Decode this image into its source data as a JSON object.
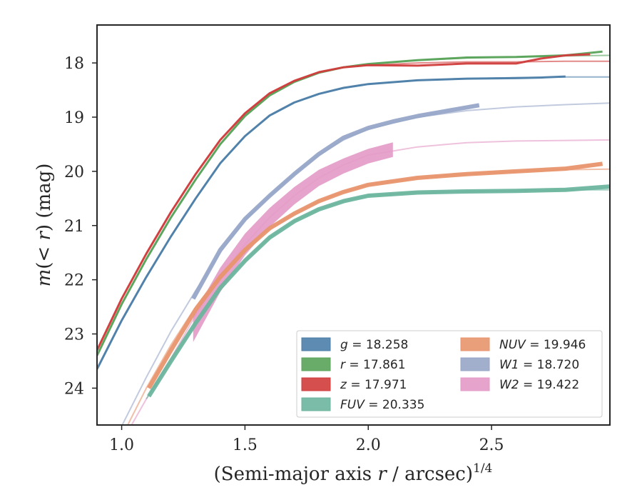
{
  "chart_data": {
    "type": "line",
    "xlabel": "(Semi-major axis r / arcsec)^{1/4}",
    "xlabel_parts": {
      "pre": "(Semi-major axis ",
      "var": "r",
      "post": " / arcsec)",
      "sup": "1/4"
    },
    "ylabel": "m(< r) (mag)",
    "ylabel_parts": {
      "var": "m",
      "open": "(< ",
      "rvar": "r",
      "close": ") (mag)"
    },
    "xlim": [
      0.9,
      2.98
    ],
    "ylim": [
      24.68,
      17.3
    ],
    "y_inverted": true,
    "xticks": [
      1.0,
      1.5,
      2.0,
      2.5
    ],
    "xtick_labels": [
      "1.0",
      "1.5",
      "2.0",
      "2.5"
    ],
    "yticks": [
      18,
      19,
      20,
      21,
      22,
      23,
      24
    ],
    "ytick_labels": [
      "18",
      "19",
      "20",
      "21",
      "22",
      "23",
      "24"
    ],
    "grid": false,
    "legend_placement": "lower-right",
    "series": [
      {
        "name": "g = 18.258",
        "band": "g",
        "mag": "18.258",
        "color": "#4c7ea8",
        "model": {
          "x": [
            0.9,
            1.0,
            1.1,
            1.2,
            1.3,
            1.4,
            1.5,
            1.6,
            1.7,
            1.8,
            1.9,
            2.0,
            2.2,
            2.4,
            2.6,
            2.8,
            2.98
          ],
          "y": [
            23.65,
            22.75,
            21.95,
            21.2,
            20.5,
            19.85,
            19.35,
            18.97,
            18.73,
            18.57,
            18.46,
            18.39,
            18.32,
            18.29,
            18.27,
            18.26,
            18.26
          ]
        },
        "data": {
          "x": [
            0.9,
            1.0,
            1.1,
            1.2,
            1.3,
            1.4,
            1.5,
            1.6,
            1.7,
            1.8,
            1.9,
            2.0,
            2.2,
            2.4,
            2.6,
            2.7,
            2.8
          ],
          "y": [
            23.65,
            22.75,
            21.95,
            21.2,
            20.5,
            19.85,
            19.35,
            18.97,
            18.73,
            18.57,
            18.46,
            18.39,
            18.32,
            18.29,
            18.28,
            18.27,
            18.25
          ]
        }
      },
      {
        "name": "r = 17.861",
        "band": "r",
        "mag": "17.861",
        "color": "#59a35a",
        "model": {
          "x": [
            0.9,
            1.0,
            1.1,
            1.2,
            1.3,
            1.4,
            1.5,
            1.6,
            1.7,
            1.8,
            1.9,
            2.0,
            2.2,
            2.4,
            2.6,
            2.8,
            2.98
          ],
          "y": [
            23.4,
            22.45,
            21.62,
            20.85,
            20.15,
            19.5,
            18.98,
            18.6,
            18.35,
            18.18,
            18.08,
            18.02,
            17.95,
            17.91,
            17.89,
            17.87,
            17.86
          ]
        },
        "data": {
          "x": [
            0.9,
            1.0,
            1.1,
            1.2,
            1.3,
            1.4,
            1.5,
            1.6,
            1.7,
            1.8,
            1.9,
            2.0,
            2.2,
            2.4,
            2.6,
            2.8,
            2.95
          ],
          "y": [
            23.4,
            22.45,
            21.62,
            20.85,
            20.15,
            19.5,
            18.98,
            18.6,
            18.35,
            18.18,
            18.08,
            18.02,
            17.95,
            17.9,
            17.89,
            17.86,
            17.79
          ]
        }
      },
      {
        "name": "z = 17.971",
        "band": "z",
        "mag": "17.971",
        "color": "#d03c3c",
        "model": {
          "x": [
            0.9,
            1.0,
            1.1,
            1.2,
            1.3,
            1.4,
            1.5,
            1.6,
            1.7,
            1.8,
            1.9,
            2.0,
            2.2,
            2.4,
            2.6,
            2.8,
            2.98
          ],
          "y": [
            23.3,
            22.35,
            21.52,
            20.75,
            20.05,
            19.42,
            18.93,
            18.56,
            18.33,
            18.17,
            18.08,
            18.04,
            18.0,
            17.98,
            17.98,
            17.97,
            17.97
          ]
        },
        "data": {
          "x": [
            0.9,
            1.0,
            1.1,
            1.2,
            1.3,
            1.4,
            1.5,
            1.6,
            1.7,
            1.8,
            1.9,
            2.0,
            2.2,
            2.4,
            2.6,
            2.7,
            2.8,
            2.9
          ],
          "y": [
            23.3,
            22.35,
            21.52,
            20.75,
            20.05,
            19.42,
            18.93,
            18.56,
            18.33,
            18.17,
            18.08,
            18.04,
            18.05,
            18.01,
            18.01,
            17.92,
            17.86,
            17.84
          ]
        }
      },
      {
        "name": "FUV = 20.335",
        "band": "FUV",
        "mag": "20.335",
        "color": "#6db59e",
        "model": {
          "x": [
            1.1,
            1.2,
            1.3,
            1.4,
            1.5,
            1.6,
            1.7,
            1.8,
            1.9,
            2.0,
            2.2,
            2.4,
            2.6,
            2.8,
            2.98
          ],
          "y": [
            24.2,
            23.5,
            22.8,
            22.15,
            21.65,
            21.22,
            20.92,
            20.7,
            20.55,
            20.45,
            20.39,
            20.37,
            20.36,
            20.34,
            20.34
          ]
        },
        "data": {
          "x": [
            1.11,
            1.2,
            1.3,
            1.4,
            1.5,
            1.6,
            1.7,
            1.8,
            1.9,
            2.0,
            2.2,
            2.4,
            2.6,
            2.8,
            2.98
          ],
          "y": [
            24.15,
            23.5,
            22.8,
            22.15,
            21.65,
            21.22,
            20.92,
            20.7,
            20.55,
            20.45,
            20.39,
            20.37,
            20.36,
            20.34,
            20.28
          ]
        }
      },
      {
        "name": "NUV = 19.946",
        "band": "NUV",
        "mag": "19.946",
        "color": "#e8956d",
        "model": {
          "x": [
            1.0,
            1.1,
            1.2,
            1.3,
            1.4,
            1.5,
            1.6,
            1.7,
            1.8,
            1.9,
            2.0,
            2.2,
            2.4,
            2.6,
            2.8,
            2.98
          ],
          "y": [
            24.9,
            24.0,
            23.2,
            22.5,
            21.9,
            21.42,
            21.05,
            20.78,
            20.55,
            20.38,
            20.25,
            20.12,
            20.05,
            20.0,
            19.97,
            19.96
          ]
        },
        "data": {
          "x": [
            1.11,
            1.2,
            1.3,
            1.4,
            1.5,
            1.6,
            1.7,
            1.8,
            1.9,
            2.0,
            2.2,
            2.4,
            2.6,
            2.8,
            2.95
          ],
          "y": [
            24.0,
            23.3,
            22.55,
            21.95,
            21.45,
            21.05,
            20.78,
            20.55,
            20.38,
            20.25,
            20.12,
            20.05,
            20.0,
            19.95,
            19.86
          ]
        }
      },
      {
        "name": "W1 = 18.720",
        "band": "W1",
        "mag": "18.720",
        "color": "#97a6c8",
        "model": {
          "x": [
            1.0,
            1.1,
            1.2,
            1.3,
            1.4,
            1.5,
            1.6,
            1.7,
            1.8,
            1.9,
            2.0,
            2.2,
            2.4,
            2.6,
            2.8,
            2.98
          ],
          "y": [
            24.7,
            23.8,
            22.95,
            22.2,
            21.5,
            20.9,
            20.45,
            20.05,
            19.7,
            19.42,
            19.22,
            19.0,
            18.88,
            18.81,
            18.77,
            18.74
          ]
        },
        "data": {
          "x": [
            1.29,
            1.4,
            1.5,
            1.6,
            1.7,
            1.8,
            1.9,
            2.0,
            2.1,
            2.2,
            2.3,
            2.45
          ],
          "y": [
            22.35,
            21.45,
            20.88,
            20.45,
            20.05,
            19.68,
            19.38,
            19.2,
            19.08,
            18.98,
            18.9,
            18.78
          ]
        }
      },
      {
        "name": "W2 = 19.422",
        "band": "W2",
        "mag": "19.422",
        "color": "#e39ac7",
        "model": {
          "x": [
            1.0,
            1.1,
            1.2,
            1.3,
            1.4,
            1.5,
            1.6,
            1.7,
            1.8,
            1.9,
            2.0,
            2.2,
            2.4,
            2.6,
            2.8,
            2.98
          ],
          "y": [
            25.0,
            24.2,
            23.45,
            22.65,
            21.95,
            21.35,
            20.85,
            20.45,
            20.12,
            19.88,
            19.7,
            19.55,
            19.47,
            19.44,
            19.43,
            19.42
          ]
        },
        "data": {
          "x": [
            1.29,
            1.4,
            1.5,
            1.6,
            1.7,
            1.8,
            1.9,
            2.0,
            2.1
          ],
          "y": [
            22.9,
            22.0,
            21.35,
            20.85,
            20.45,
            20.12,
            19.9,
            19.72,
            19.6
          ]
        },
        "band_width": [
          0.5,
          0.45,
          0.4,
          0.35,
          0.32,
          0.3,
          0.28,
          0.27,
          0.27
        ]
      }
    ]
  }
}
